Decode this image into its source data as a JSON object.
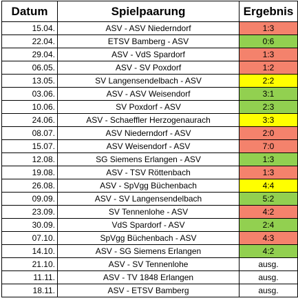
{
  "headers": {
    "date": "Datum",
    "match": "Spielpaarung",
    "result": "Ergebnis"
  },
  "colors": {
    "loss": "#f4826c",
    "draw": "#ffff00",
    "win": "#92d050",
    "none": "#ffffff"
  },
  "rows": [
    {
      "date": "15.04.",
      "match": "ASV - ASV Niederndorf",
      "result": "1:3",
      "status": "loss"
    },
    {
      "date": "22.04.",
      "match": "ETSV Bamberg - ASV",
      "result": "0:6",
      "status": "win"
    },
    {
      "date": "29.04.",
      "match": "ASV - VdS Spardorf",
      "result": "1:3",
      "status": "loss"
    },
    {
      "date": "06.05.",
      "match": "ASV - SV Poxdorf",
      "result": "1:2",
      "status": "loss"
    },
    {
      "date": "13.05.",
      "match": "SV Langensendelbach - ASV",
      "result": "2:2",
      "status": "draw"
    },
    {
      "date": "03.06.",
      "match": "ASV - ASV Weisendorf",
      "result": "3:1",
      "status": "win"
    },
    {
      "date": "10.06.",
      "match": "SV Poxdorf - ASV",
      "result": "2:3",
      "status": "win"
    },
    {
      "date": "24.06.",
      "match": "ASV - Schaeffler Herzogenaurach",
      "result": "3:3",
      "status": "draw"
    },
    {
      "date": "08.07.",
      "match": "ASV Niederndorf - ASV",
      "result": "2:0",
      "status": "loss"
    },
    {
      "date": "15.07.",
      "match": "ASV Weisendorf - ASV",
      "result": "7:0",
      "status": "loss"
    },
    {
      "date": "12.08.",
      "match": "SG Siemens Erlangen - ASV",
      "result": "1:3",
      "status": "win"
    },
    {
      "date": "19.08.",
      "match": "ASV - TSV Röttenbach",
      "result": "1:3",
      "status": "loss"
    },
    {
      "date": "26.08.",
      "match": "ASV - SpVgg Büchenbach",
      "result": "4:4",
      "status": "draw"
    },
    {
      "date": "09.09.",
      "match": "ASV - SV Langensendelbach",
      "result": "5:2",
      "status": "win"
    },
    {
      "date": "23.09.",
      "match": "SV Tennenlohe - ASV",
      "result": "4:2",
      "status": "loss"
    },
    {
      "date": "30.09.",
      "match": "VdS Spardorf - ASV",
      "result": "2:4",
      "status": "win"
    },
    {
      "date": "07.10.",
      "match": "SpVgg Büchenbach - ASV",
      "result": "4:3",
      "status": "loss"
    },
    {
      "date": "14.10.",
      "match": "ASV - SG Siemens Erlangen",
      "result": "4:2",
      "status": "win"
    },
    {
      "date": "21.10.",
      "match": "ASV - SV Tennenlohe",
      "result": "ausg.",
      "status": "none"
    },
    {
      "date": "11.11.",
      "match": "ASV - TV 1848 Erlangen",
      "result": "ausg.",
      "status": "none"
    },
    {
      "date": "18.11.",
      "match": "ASV - ETSV Bamberg",
      "result": "ausg.",
      "status": "none"
    }
  ]
}
